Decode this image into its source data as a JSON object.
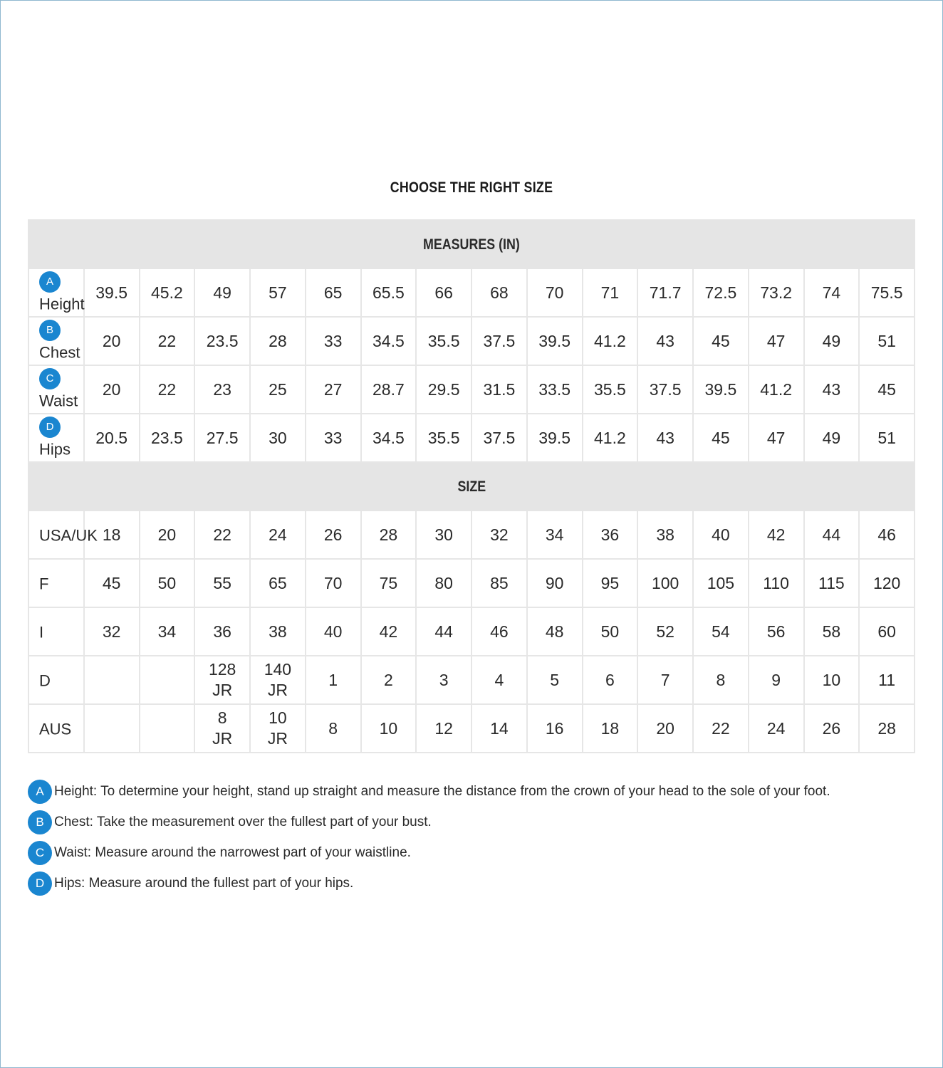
{
  "title": "CHOOSE THE RIGHT SIZE",
  "accent_color": "#1a86d0",
  "measures": {
    "header": "MEASURES (IN)",
    "rows": [
      {
        "badge": "A",
        "label": "Height",
        "values": [
          "39.5",
          "45.2",
          "49",
          "57",
          "65",
          "65.5",
          "66",
          "68",
          "70",
          "71",
          "71.7",
          "72.5",
          "73.2",
          "74",
          "75.5"
        ]
      },
      {
        "badge": "B",
        "label": "Chest",
        "values": [
          "20",
          "22",
          "23.5",
          "28",
          "33",
          "34.5",
          "35.5",
          "37.5",
          "39.5",
          "41.2",
          "43",
          "45",
          "47",
          "49",
          "51"
        ]
      },
      {
        "badge": "C",
        "label": "Waist",
        "values": [
          "20",
          "22",
          "23",
          "25",
          "27",
          "28.7",
          "29.5",
          "31.5",
          "33.5",
          "35.5",
          "37.5",
          "39.5",
          "41.2",
          "43",
          "45"
        ]
      },
      {
        "badge": "D",
        "label": "Hips",
        "values": [
          "20.5",
          "23.5",
          "27.5",
          "30",
          "33",
          "34.5",
          "35.5",
          "37.5",
          "39.5",
          "41.2",
          "43",
          "45",
          "47",
          "49",
          "51"
        ]
      }
    ]
  },
  "size": {
    "header": "SIZE",
    "rows": [
      {
        "label": "USA/UK",
        "values": [
          "18",
          "20",
          "22",
          "24",
          "26",
          "28",
          "30",
          "32",
          "34",
          "36",
          "38",
          "40",
          "42",
          "44",
          "46"
        ]
      },
      {
        "label": "F",
        "values": [
          "45",
          "50",
          "55",
          "65",
          "70",
          "75",
          "80",
          "85",
          "90",
          "95",
          "100",
          "105",
          "110",
          "115",
          "120"
        ]
      },
      {
        "label": "I",
        "values": [
          "32",
          "34",
          "36",
          "38",
          "40",
          "42",
          "44",
          "46",
          "48",
          "50",
          "52",
          "54",
          "56",
          "58",
          "60"
        ]
      },
      {
        "label": "D",
        "values": [
          "",
          "",
          "128\nJR",
          "140\nJR",
          "1",
          "2",
          "3",
          "4",
          "5",
          "6",
          "7",
          "8",
          "9",
          "10",
          "11"
        ]
      },
      {
        "label": "AUS",
        "values": [
          "",
          "",
          "8\nJR",
          "10\nJR",
          "8",
          "10",
          "12",
          "14",
          "16",
          "18",
          "20",
          "22",
          "24",
          "26",
          "28"
        ]
      }
    ]
  },
  "notes": [
    {
      "badge": "A",
      "text": "Height: To determine your height, stand up straight and measure the distance from the crown of your head to the sole of your foot."
    },
    {
      "badge": "B",
      "text": "Chest: Take the measurement over the fullest part of your bust."
    },
    {
      "badge": "C",
      "text": "Waist: Measure around the narrowest part of your waistline."
    },
    {
      "badge": "D",
      "text": "Hips: Measure around the fullest part of your hips."
    }
  ]
}
